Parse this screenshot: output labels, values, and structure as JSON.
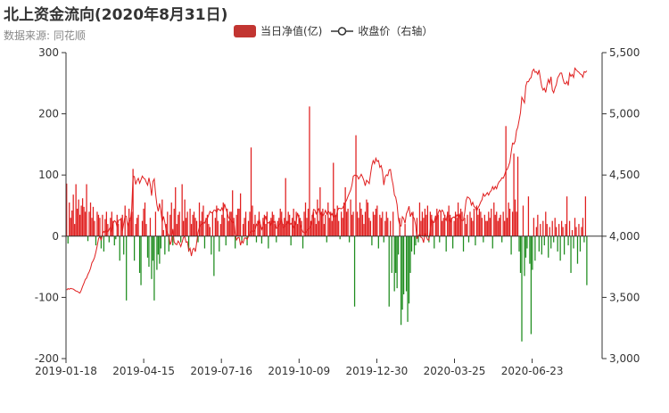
{
  "title": "北上资金流向(2020年8月31日)",
  "subtitle": "数据来源: 同花顺",
  "colors": {
    "bar_positive": "#e01e1e",
    "bar_negative": "#1e8c1e",
    "line": "#e01e1e",
    "axis": "#333333",
    "legend_swatch": "#c23531"
  },
  "chart_data": {
    "type": "bar",
    "legend_placement": "top-center",
    "grid": false,
    "xlabel": "",
    "ylabel": "",
    "x_tick_labels": [
      "2019-01-18",
      "2019-04-15",
      "2019-07-16",
      "2019-10-09",
      "2019-12-30",
      "2020-03-25",
      "2020-06-23"
    ],
    "y_left": {
      "min": -200,
      "max": 300,
      "ticks": [
        -200,
        -100,
        0,
        100,
        200,
        300
      ],
      "tick_labels": [
        "-200",
        "-100",
        "0",
        "100",
        "200",
        "300"
      ]
    },
    "y_right": {
      "min": 3000,
      "max": 5500,
      "ticks": [
        3000,
        3500,
        4000,
        4500,
        5000,
        5500
      ],
      "tick_labels": [
        "3,000",
        "3,500",
        "4,000",
        "4,500",
        "5,000",
        "5,500"
      ]
    },
    "n_points": 404,
    "series": [
      {
        "name": "当日净值(亿)",
        "type": "bar",
        "axis": "left",
        "values": [
          86,
          -12,
          55,
          30,
          42,
          68,
          20,
          85,
          45,
          60,
          35,
          50,
          62,
          48,
          40,
          85,
          -8,
          40,
          55,
          30,
          48,
          25,
          -15,
          40,
          35,
          30,
          -20,
          35,
          -25,
          28,
          40,
          20,
          -10,
          30,
          40,
          25,
          -15,
          -5,
          35,
          20,
          -40,
          30,
          35,
          -30,
          50,
          -105,
          20,
          45,
          30,
          40,
          110,
          -40,
          20,
          30,
          35,
          -60,
          -80,
          25,
          45,
          55,
          20,
          -35,
          -50,
          30,
          -70,
          -40,
          -105,
          40,
          -55,
          -30,
          -45,
          -20,
          60,
          10,
          -30,
          20,
          40,
          -25,
          35,
          55,
          -15,
          45,
          80,
          20,
          35,
          40,
          -10,
          85,
          25,
          60,
          30,
          40,
          -25,
          45,
          20,
          35,
          40,
          30,
          25,
          -10,
          55,
          25,
          40,
          50,
          -20,
          30,
          35,
          20,
          15,
          -30,
          40,
          -65,
          30,
          50,
          25,
          -25,
          20,
          35,
          55,
          30,
          -15,
          45,
          25,
          40,
          40,
          75,
          30,
          -20,
          35,
          45,
          45,
          70,
          -10,
          20,
          30,
          40,
          -15,
          25,
          40,
          145,
          50,
          20,
          35,
          -10,
          25,
          40,
          20,
          -12,
          30,
          35,
          20,
          40,
          -20,
          25,
          30,
          40,
          35,
          20,
          -10,
          25,
          30,
          45,
          40,
          20,
          30,
          95,
          25,
          40,
          35,
          -15,
          30,
          45,
          25,
          40,
          20,
          35,
          30,
          25,
          -20,
          40,
          55,
          30,
          45,
          212,
          25,
          35,
          40,
          30,
          20,
          60,
          25,
          80,
          40,
          45,
          20,
          35,
          -10,
          55,
          30,
          40,
          25,
          120,
          45,
          35,
          50,
          25,
          -5,
          40,
          30,
          55,
          80,
          40,
          45,
          -10,
          60,
          35,
          40,
          -115,
          165,
          40,
          30,
          55,
          45,
          35,
          20,
          40,
          60,
          55,
          30,
          25,
          -15,
          40,
          35,
          45,
          50,
          -20,
          35,
          30,
          40,
          -10,
          25,
          40,
          30,
          -115,
          25,
          -60,
          40,
          -90,
          -60,
          -85,
          -30,
          30,
          -145,
          -120,
          -95,
          20,
          -90,
          -140,
          -110,
          -60,
          -25,
          40,
          -30,
          -15,
          30,
          -10,
          55,
          25,
          40,
          30,
          45,
          35,
          50,
          -10,
          40,
          35,
          25,
          -20,
          30,
          45,
          35,
          -10,
          40,
          25,
          30,
          35,
          -25,
          40,
          50,
          35,
          30,
          -20,
          25,
          40,
          30,
          55,
          35,
          45,
          40,
          -25,
          30,
          20,
          35,
          -10,
          40,
          30,
          25,
          45,
          -15,
          50,
          35,
          45,
          40,
          30,
          -10,
          35,
          25,
          25,
          40,
          30,
          45,
          -20,
          55,
          35,
          40,
          25,
          30,
          35,
          -10,
          40,
          25,
          180,
          30,
          55,
          45,
          -30,
          40,
          135,
          60,
          40,
          130,
          -25,
          -60,
          -172,
          50,
          -65,
          -35,
          -20,
          65,
          -45,
          -160,
          -55,
          30,
          -40,
          15,
          35,
          -25,
          20,
          -30,
          25,
          -15,
          40,
          20,
          -35,
          15,
          -20,
          25,
          -10,
          30,
          15,
          -25,
          20,
          -40,
          25,
          15,
          -30,
          20,
          65,
          -15,
          25,
          -60,
          10,
          -20,
          30,
          15,
          -45,
          20,
          -25,
          15,
          30,
          -10,
          65,
          -80
        ]
      },
      {
        "name": "收盘价（右轴）",
        "type": "line",
        "axis": "right",
        "values": [
          3560,
          3572,
          3566,
          3574,
          3570,
          3568,
          3560,
          3552,
          3550,
          3541,
          3536,
          3559,
          3590,
          3615,
          3646,
          3658,
          3688,
          3709,
          3738,
          3782,
          3800,
          3826,
          3870,
          3921,
          3980,
          4000,
          3966,
          4021,
          4039,
          4029,
          4048,
          4032,
          4055,
          4076,
          4034,
          4104,
          4127,
          4118,
          4075,
          4130,
          4133,
          4138,
          4041,
          4105,
          4167,
          4163,
          4082,
          4127,
          4126,
          4221,
          4490,
          4488,
          4423,
          4455,
          4473,
          4433,
          4461,
          4491,
          4474,
          4468,
          4441,
          4417,
          4477,
          4422,
          4331,
          4447,
          4468,
          4348,
          4256,
          4203,
          4268,
          4204,
          4114,
          4162,
          4112,
          4043,
          4026,
          4009,
          3930,
          3960,
          4059,
          3953,
          3937,
          3931,
          3961,
          3943,
          3915,
          3951,
          3990,
          3996,
          3950,
          3955,
          3880,
          3901,
          3838,
          3892,
          3902,
          3873,
          3950,
          4032,
          4073,
          4097,
          4095,
          4114,
          4107,
          4137,
          4144,
          4173,
          4203,
          4191,
          4192,
          4213,
          4213,
          4192,
          4225,
          4216,
          4209,
          4232,
          4200,
          4264,
          4224,
          4190,
          4152,
          4142,
          4131,
          4109,
          4122,
          4020,
          3969,
          3988,
          3990,
          3926,
          3962,
          3944,
          3985,
          3986,
          3973,
          4000,
          4024,
          4040,
          4044,
          4037,
          4050,
          4098,
          4084,
          4143,
          4101,
          4056,
          4081,
          4123,
          4165,
          4116,
          4107,
          4115,
          4085,
          4130,
          4111,
          4121,
          4064,
          4072,
          4096,
          4102,
          4140,
          4071,
          4074,
          4096,
          4101,
          4128,
          4091,
          4106,
          4089,
          4064,
          4089,
          4121,
          4190,
          4149,
          4096,
          4063,
          4035,
          4029,
          4026,
          4045,
          4058,
          4064,
          4083,
          4134,
          4219,
          4215,
          4182,
          4209,
          4224,
          4172,
          4192,
          4162,
          4181,
          4212,
          4181,
          4208,
          4193,
          4167,
          4185,
          4154,
          4171,
          4157,
          4206,
          4229,
          4227,
          4224,
          4231,
          4255,
          4275,
          4296,
          4326,
          4352,
          4377,
          4418,
          4490,
          4499,
          4498,
          4493,
          4467,
          4484,
          4506,
          4484,
          4454,
          4412,
          4457,
          4445,
          4430,
          4507,
          4578,
          4618,
          4593,
          4637,
          4610,
          4618,
          4563,
          4577,
          4528,
          4418,
          4483,
          4502,
          4495,
          4542,
          4545,
          4471,
          4420,
          4337,
          4317,
          4258,
          4138,
          4089,
          4083,
          4159,
          4143,
          4105,
          4183,
          4208,
          4245,
          4159,
          4190,
          4161,
          4143,
          4091,
          3979,
          4005,
          4018,
          3990,
          3984,
          3947,
          4027,
          3999,
          3971,
          3968,
          4058,
          4146,
          4109,
          4115,
          4168,
          4132,
          4192,
          4214,
          4196,
          4214,
          4195,
          4153,
          4129,
          4176,
          4147,
          4113,
          4140,
          4153,
          4158,
          4145,
          4175,
          4160,
          4179,
          4135,
          4126,
          4129,
          4195,
          4292,
          4321,
          4315,
          4302,
          4254,
          4277,
          4242,
          4234,
          4205,
          4232,
          4252,
          4279,
          4298,
          4347,
          4326,
          4340,
          4356,
          4336,
          4362,
          4373,
          4405,
          4382,
          4407,
          4388,
          4426,
          4446,
          4456,
          4477,
          4474,
          4500,
          4538,
          4546,
          4574,
          4606,
          4687,
          4760,
          4753,
          4778,
          4862,
          4891,
          4950,
          5009,
          5135,
          5113,
          5090,
          5226,
          5263,
          5262,
          5286,
          5296,
          5348,
          5365,
          5339,
          5344,
          5323,
          5358,
          5288,
          5224,
          5194,
          5209,
          5175,
          5235,
          5281,
          5249,
          5303,
          5194,
          5172,
          5211,
          5238,
          5294,
          5312,
          5333,
          5333,
          5285,
          5249,
          5244,
          5265,
          5232,
          5331,
          5306,
          5322,
          5297,
          5373,
          5359,
          5348,
          5340,
          5326,
          5320,
          5299,
          5345,
          5339,
          5351
        ]
      }
    ]
  }
}
